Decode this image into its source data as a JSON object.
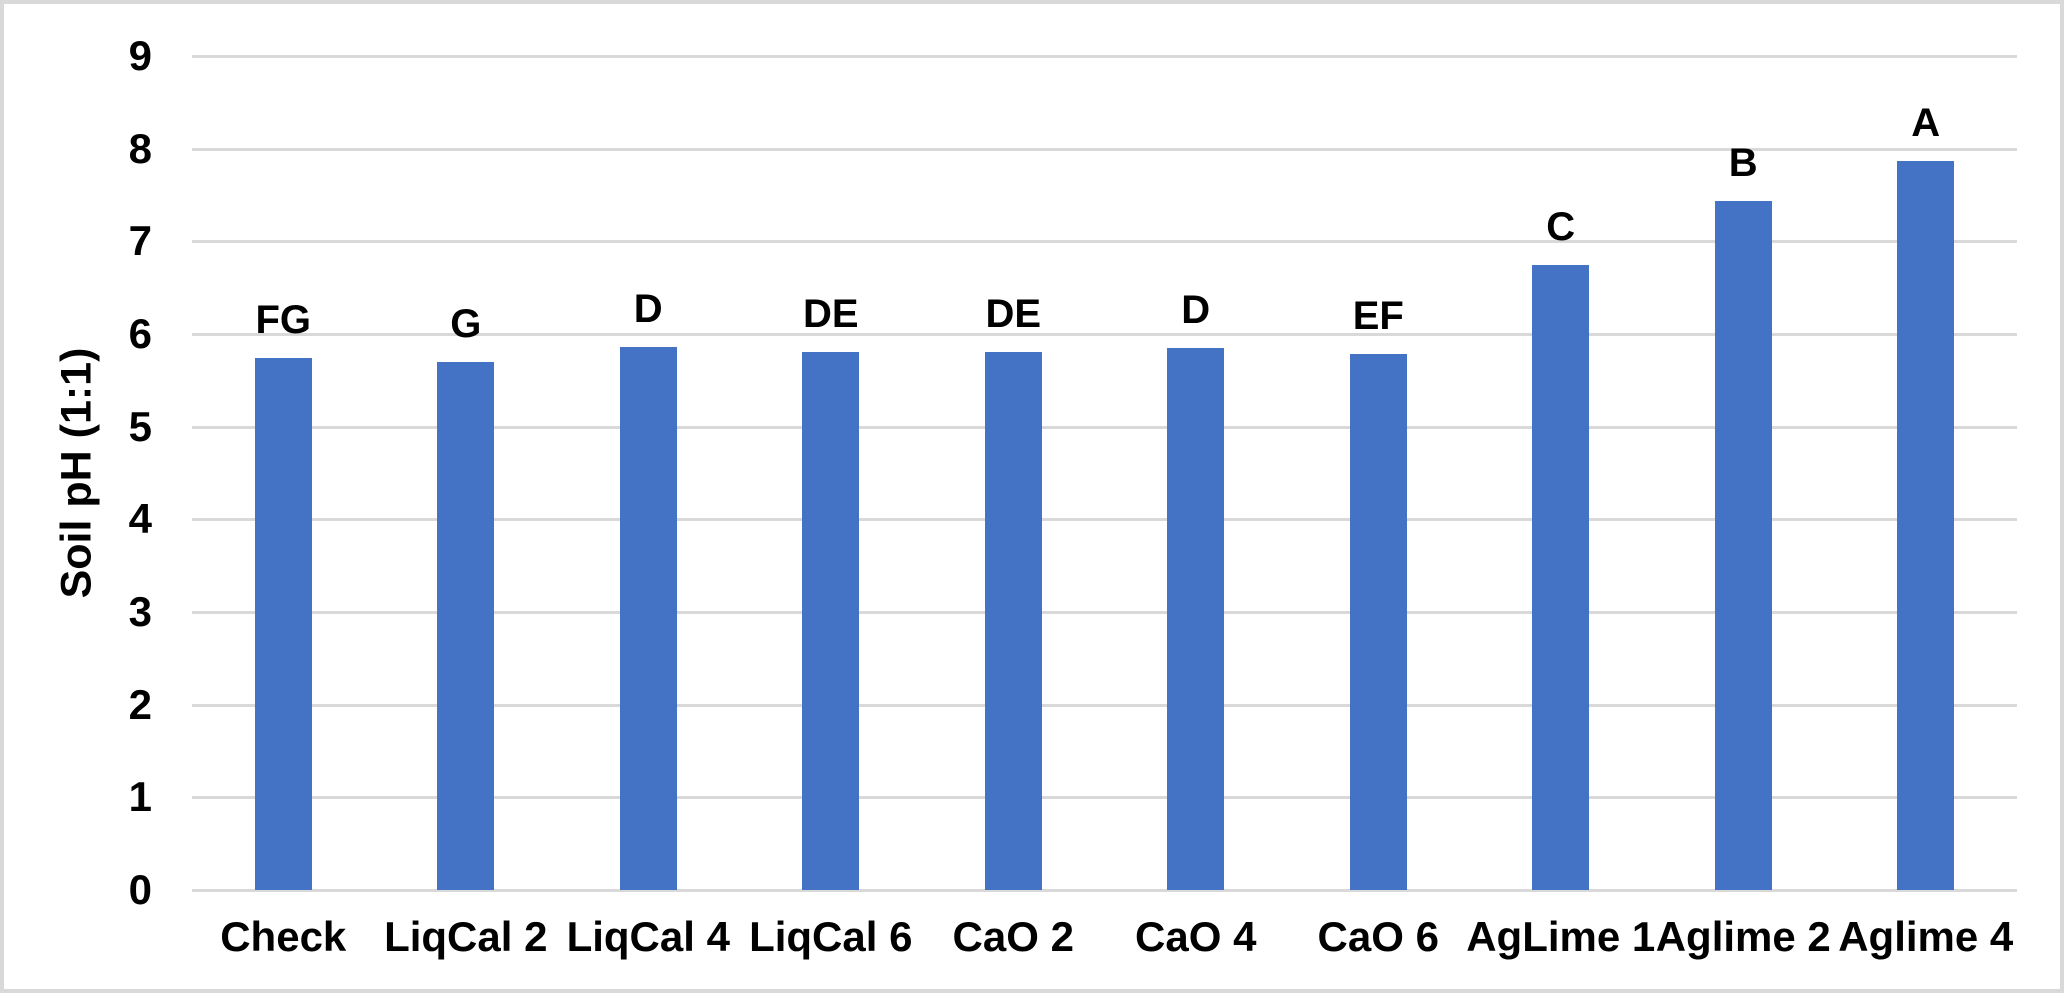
{
  "chart_data": {
    "type": "bar",
    "title": "",
    "xlabel": "",
    "ylabel": "Soil pH (1:1)",
    "ylim": [
      0,
      9
    ],
    "ytick_interval": 1,
    "yticks": [
      "0",
      "1",
      "2",
      "3",
      "4",
      "5",
      "6",
      "7",
      "8",
      "9"
    ],
    "grid": "horizontal",
    "legend": "none",
    "categories": [
      "Check",
      "LiqCal 2",
      "LiqCal 4",
      "LiqCal 6",
      "CaO 2",
      "CaO 4",
      "CaO 6",
      "AgLime 1",
      "Aglime 2",
      "Aglime 4"
    ],
    "values": [
      5.74,
      5.7,
      5.86,
      5.81,
      5.81,
      5.85,
      5.78,
      6.75,
      7.44,
      7.87
    ],
    "bar_labels": [
      "FG",
      "G",
      "D",
      "DE",
      "DE",
      "D",
      "EF",
      "C",
      "B",
      "A"
    ],
    "colors": {
      "bar": "#4472C4",
      "gridline": "#D9D9D9",
      "text": "#000000",
      "frame_border": "#D9D9D9",
      "background": "#FFFFFF"
    }
  }
}
